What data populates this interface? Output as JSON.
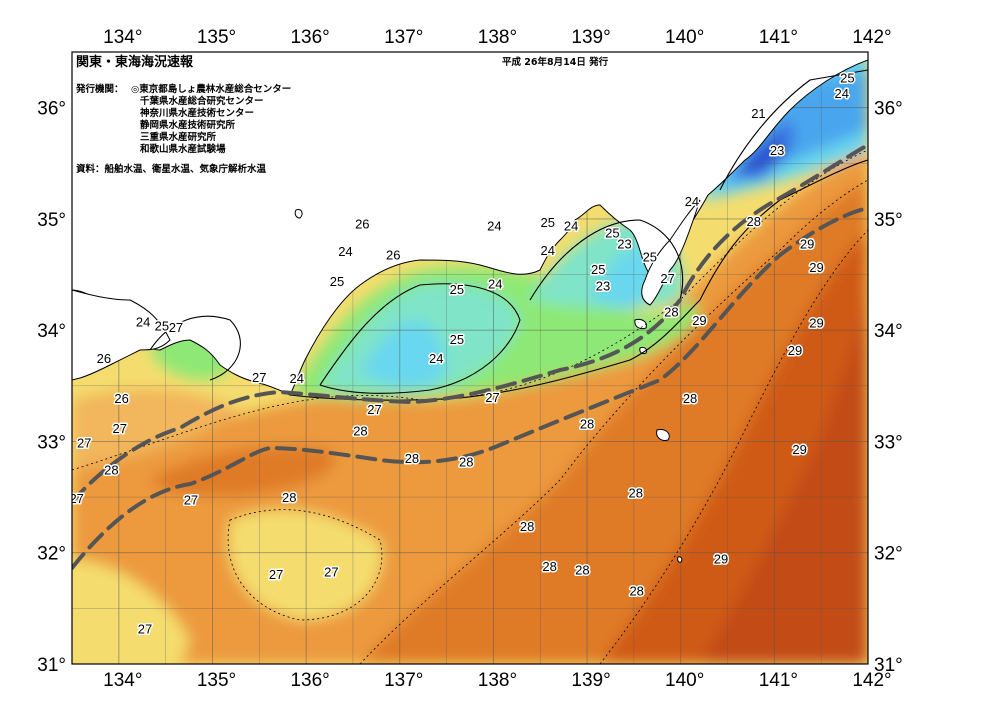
{
  "title": "関東・東海海況速報",
  "date": "平成  26年8月14日  発行",
  "issuer_label": "発行機関：",
  "issuers": [
    "◎東京都島しょ農林水産総合センター",
    "千葉県水産総合研究センター",
    "神奈川県水産技術センター",
    "静岡県水産技術研究所",
    "三重県水産研究所",
    "和歌山県水産試験場"
  ],
  "source": "資料：船舶水温、衛星水温、気象庁解析水温",
  "lon_ticks": [
    "134°",
    "135°",
    "136°",
    "137°",
    "138°",
    "139°",
    "140°",
    "141°",
    "142°"
  ],
  "lat_ticks": [
    "31°",
    "32°",
    "33°",
    "34°",
    "35°",
    "36°"
  ],
  "temperature_labels": [
    {
      "value": "25",
      "lon": 141.78,
      "lat": 36.27
    },
    {
      "value": "24",
      "lon": 141.72,
      "lat": 36.13
    },
    {
      "value": "21",
      "lon": 140.83,
      "lat": 35.95
    },
    {
      "value": "23",
      "lon": 141.03,
      "lat": 35.62
    },
    {
      "value": "24",
      "lon": 140.12,
      "lat": 35.16
    },
    {
      "value": "28",
      "lon": 140.78,
      "lat": 34.98
    },
    {
      "value": "29",
      "lon": 141.35,
      "lat": 34.78
    },
    {
      "value": "29",
      "lon": 141.45,
      "lat": 34.57
    },
    {
      "value": "29",
      "lon": 141.45,
      "lat": 34.07
    },
    {
      "value": "29",
      "lon": 141.22,
      "lat": 33.82
    },
    {
      "value": "29",
      "lon": 141.27,
      "lat": 32.93
    },
    {
      "value": "29",
      "lon": 140.43,
      "lat": 31.95
    },
    {
      "value": "26",
      "lon": 136.6,
      "lat": 34.96
    },
    {
      "value": "24",
      "lon": 136.42,
      "lat": 34.71
    },
    {
      "value": "25",
      "lon": 136.33,
      "lat": 34.44
    },
    {
      "value": "26",
      "lon": 136.93,
      "lat": 34.68
    },
    {
      "value": "25",
      "lon": 137.61,
      "lat": 34.37
    },
    {
      "value": "24",
      "lon": 138.02,
      "lat": 34.42
    },
    {
      "value": "24",
      "lon": 138.01,
      "lat": 34.94
    },
    {
      "value": "25",
      "lon": 138.58,
      "lat": 34.97
    },
    {
      "value": "24",
      "lon": 138.83,
      "lat": 34.94
    },
    {
      "value": "24",
      "lon": 138.58,
      "lat": 34.72
    },
    {
      "value": "25",
      "lon": 139.27,
      "lat": 34.88
    },
    {
      "value": "23",
      "lon": 139.4,
      "lat": 34.78
    },
    {
      "value": "25",
      "lon": 139.12,
      "lat": 34.55
    },
    {
      "value": "23",
      "lon": 139.17,
      "lat": 34.4
    },
    {
      "value": "25",
      "lon": 139.67,
      "lat": 34.66
    },
    {
      "value": "27",
      "lon": 139.86,
      "lat": 34.47
    },
    {
      "value": "28",
      "lon": 139.9,
      "lat": 34.17
    },
    {
      "value": "29",
      "lon": 140.2,
      "lat": 34.09
    },
    {
      "value": "25",
      "lon": 137.61,
      "lat": 33.92
    },
    {
      "value": "24",
      "lon": 137.39,
      "lat": 33.75
    },
    {
      "value": "24",
      "lon": 134.26,
      "lat": 34.08
    },
    {
      "value": "25",
      "lon": 134.46,
      "lat": 34.04
    },
    {
      "value": "27",
      "lon": 134.61,
      "lat": 34.03
    },
    {
      "value": "26",
      "lon": 133.84,
      "lat": 33.75
    },
    {
      "value": "27",
      "lon": 135.5,
      "lat": 33.58
    },
    {
      "value": "24",
      "lon": 135.9,
      "lat": 33.57
    },
    {
      "value": "26",
      "lon": 134.03,
      "lat": 33.39
    },
    {
      "value": "27",
      "lon": 134.01,
      "lat": 33.12
    },
    {
      "value": "27",
      "lon": 133.63,
      "lat": 32.99
    },
    {
      "value": "28",
      "lon": 133.92,
      "lat": 32.75
    },
    {
      "value": "27",
      "lon": 133.55,
      "lat": 32.49
    },
    {
      "value": "27",
      "lon": 134.77,
      "lat": 32.48
    },
    {
      "value": "28",
      "lon": 135.82,
      "lat": 32.5
    },
    {
      "value": "27",
      "lon": 136.73,
      "lat": 33.29
    },
    {
      "value": "28",
      "lon": 136.58,
      "lat": 33.1
    },
    {
      "value": "27",
      "lon": 137.99,
      "lat": 33.4
    },
    {
      "value": "28",
      "lon": 137.13,
      "lat": 32.85
    },
    {
      "value": "28",
      "lon": 137.71,
      "lat": 32.82
    },
    {
      "value": "28",
      "lon": 139.0,
      "lat": 33.16
    },
    {
      "value": "28",
      "lon": 140.1,
      "lat": 33.39
    },
    {
      "value": "28",
      "lon": 139.52,
      "lat": 32.54
    },
    {
      "value": "28",
      "lon": 138.36,
      "lat": 32.24
    },
    {
      "value": "28",
      "lon": 138.6,
      "lat": 31.88
    },
    {
      "value": "28",
      "lon": 138.95,
      "lat": 31.85
    },
    {
      "value": "28",
      "lon": 139.53,
      "lat": 31.66
    },
    {
      "value": "27",
      "lon": 135.68,
      "lat": 31.81
    },
    {
      "value": "27",
      "lon": 136.27,
      "lat": 31.83
    },
    {
      "value": "27",
      "lon": 134.28,
      "lat": 31.32
    }
  ],
  "colors": {
    "t21": "#2b4fd0",
    "t22": "#3a72e0",
    "t23": "#4aa6ee",
    "t24": "#69d7ef",
    "t25": "#7fe4c8",
    "t26": "#8ee875",
    "t27": "#f4dd6e",
    "t275": "#f2b65c",
    "t28": "#ec9a3c",
    "t285": "#df7a26",
    "t29": "#cf5a18",
    "t295": "#c24c12",
    "land": "#ffffff",
    "coast": "#000000",
    "grid": "#555555",
    "kuroshio": "#555555"
  }
}
